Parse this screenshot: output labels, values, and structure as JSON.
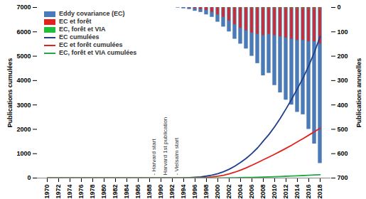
{
  "chart_data": {
    "type": "combo",
    "categories": [
      1970,
      1971,
      1972,
      1973,
      1974,
      1975,
      1976,
      1977,
      1978,
      1979,
      1980,
      1981,
      1982,
      1983,
      1984,
      1985,
      1986,
      1987,
      1988,
      1989,
      1990,
      1991,
      1992,
      1993,
      1994,
      1995,
      1996,
      1997,
      1998,
      1999,
      2000,
      2001,
      2002,
      2003,
      2004,
      2005,
      2006,
      2007,
      2008,
      2009,
      2010,
      2011,
      2012,
      2013,
      2014,
      2015,
      2016,
      2017,
      2018
    ],
    "xticks": [
      1970,
      1972,
      1974,
      1976,
      1978,
      1980,
      1982,
      1984,
      1986,
      1988,
      1990,
      1992,
      1994,
      1996,
      1998,
      2000,
      2002,
      2004,
      2006,
      2008,
      2010,
      2012,
      2014,
      2016,
      2018
    ],
    "y_label": "Publications cumulées",
    "ylim": [
      0,
      7000
    ],
    "yticks": [
      0,
      1000,
      2000,
      3000,
      4000,
      5000,
      6000,
      7000
    ],
    "y2_label": "Publications annuelles",
    "y2lim": [
      700,
      0
    ],
    "y2ticks": [
      0,
      100,
      200,
      300,
      400,
      500,
      600,
      700
    ],
    "legend": "upper left",
    "stacked": false,
    "series": [
      {
        "name": "Eddy covariance (EC)",
        "type": "bar",
        "axis": "y2",
        "color": "#4a7ab8",
        "values": [
          0,
          0,
          0,
          0,
          0,
          0,
          0,
          0,
          0,
          0,
          0,
          0,
          0,
          0,
          0,
          0,
          0,
          0,
          0,
          0,
          0,
          0,
          0,
          2,
          5,
          8,
          15,
          20,
          30,
          40,
          60,
          80,
          100,
          130,
          150,
          170,
          200,
          230,
          280,
          270,
          320,
          350,
          380,
          400,
          430,
          440,
          500,
          560,
          640
        ]
      },
      {
        "name": "EC et forêt",
        "type": "bar",
        "axis": "y2",
        "color": "#e3211c",
        "values": [
          0,
          0,
          0,
          0,
          0,
          0,
          0,
          0,
          0,
          0,
          0,
          0,
          0,
          0,
          0,
          0,
          0,
          0,
          0,
          0,
          0,
          0,
          0,
          0,
          0,
          2,
          4,
          8,
          12,
          20,
          30,
          40,
          55,
          70,
          85,
          95,
          105,
          110,
          115,
          110,
          115,
          120,
          125,
          130,
          135,
          135,
          140,
          140,
          150
        ]
      },
      {
        "name": "EC, forêt et VIA",
        "type": "bar",
        "axis": "y2",
        "color": "#1fbf3c",
        "values": [
          0,
          0,
          0,
          0,
          0,
          0,
          0,
          0,
          0,
          0,
          0,
          0,
          0,
          0,
          0,
          0,
          0,
          0,
          0,
          0,
          0,
          0,
          0,
          0,
          0,
          0,
          0,
          0,
          1,
          1,
          2,
          2,
          3,
          4,
          4,
          5,
          6,
          6,
          7,
          7,
          8,
          8,
          9,
          9,
          10,
          10,
          11,
          12,
          12
        ]
      },
      {
        "name": "EC cumulées",
        "type": "line",
        "color": "#1f3f8c",
        "values": [
          0,
          0,
          0,
          0,
          0,
          0,
          0,
          0,
          0,
          0,
          0,
          0,
          0,
          0,
          0,
          0,
          0,
          0,
          0,
          0,
          0,
          0,
          0,
          2,
          7,
          15,
          30,
          50,
          80,
          120,
          180,
          260,
          360,
          490,
          640,
          810,
          1010,
          1240,
          1520,
          1790,
          2110,
          2460,
          2840,
          3240,
          3670,
          4110,
          4610,
          5170,
          5810
        ]
      },
      {
        "name": "EC et forêt cumulées",
        "type": "line",
        "color": "#e3211c",
        "values": [
          0,
          0,
          0,
          0,
          0,
          0,
          0,
          0,
          0,
          0,
          0,
          0,
          0,
          0,
          0,
          0,
          0,
          0,
          0,
          0,
          0,
          0,
          0,
          0,
          0,
          2,
          6,
          14,
          26,
          46,
          76,
          116,
          171,
          241,
          326,
          421,
          526,
          636,
          751,
          861,
          976,
          1096,
          1221,
          1351,
          1486,
          1621,
          1761,
          1901,
          2051
        ]
      },
      {
        "name": "EC, forêt et VIA cumulées",
        "type": "line",
        "color": "#22a845",
        "values": [
          0,
          0,
          0,
          0,
          0,
          0,
          0,
          0,
          0,
          0,
          0,
          0,
          0,
          0,
          0,
          0,
          0,
          0,
          0,
          0,
          0,
          0,
          0,
          0,
          0,
          0,
          0,
          0,
          1,
          2,
          4,
          6,
          9,
          13,
          17,
          22,
          28,
          34,
          41,
          48,
          56,
          64,
          73,
          82,
          92,
          102,
          113,
          125,
          137
        ]
      }
    ],
    "annotations": [
      {
        "x": 1989,
        "text": "- Harvard start"
      },
      {
        "x": 1991,
        "text": "Harvard 1st publication"
      },
      {
        "x": 1993,
        "text": "- Vielsalm start"
      }
    ]
  }
}
